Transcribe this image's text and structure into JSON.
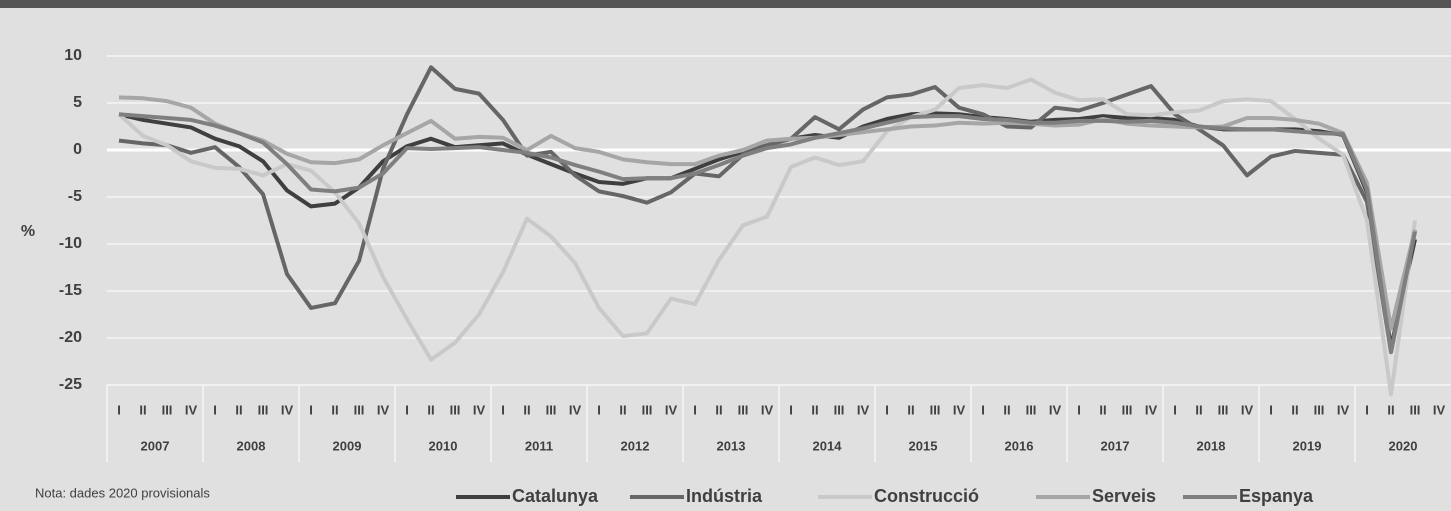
{
  "chart_data": {
    "type": "line",
    "y_label": "%",
    "note": "Nota: dades 2020 provisionals",
    "categories": [
      "I",
      "II",
      "III",
      "IV",
      "I",
      "II",
      "III",
      "IV",
      "I",
      "II",
      "III",
      "IV",
      "I",
      "II",
      "III",
      "IV",
      "I",
      "II",
      "III",
      "IV",
      "I",
      "II",
      "III",
      "IV",
      "I",
      "II",
      "III",
      "IV",
      "I",
      "II",
      "III",
      "IV",
      "I",
      "II",
      "III",
      "IV",
      "I",
      "II",
      "III",
      "IV",
      "I",
      "II",
      "III",
      "IV",
      "I",
      "II",
      "III",
      "IV",
      "I",
      "II",
      "III",
      "IV",
      "I",
      "II",
      "III",
      "IV"
    ],
    "years": [
      "2007",
      "2008",
      "2009",
      "2010",
      "2011",
      "2012",
      "2013",
      "2014",
      "2015",
      "2016",
      "2017",
      "2018",
      "2019",
      "2020"
    ],
    "ylim": [
      -25,
      10
    ],
    "yticks": [
      10,
      5,
      0,
      -5,
      -10,
      -15,
      -20,
      -25
    ],
    "grid": true,
    "series": [
      {
        "name": "Catalunya",
        "color": "#3f3f3f",
        "values": [
          3.8,
          3.2,
          2.8,
          2.4,
          1.2,
          0.4,
          -1.2,
          -4.3,
          -6.0,
          -5.7,
          -4.0,
          -1.2,
          0.4,
          1.2,
          0.3,
          0.5,
          0.7,
          -0.5,
          -1.5,
          -2.5,
          -3.4,
          -3.6,
          -3.0,
          -3.0,
          -2.0,
          -1.0,
          -0.2,
          0.5,
          1.2,
          1.6,
          1.3,
          2.5,
          3.3,
          3.8,
          3.9,
          3.8,
          3.5,
          3.3,
          3.0,
          3.2,
          3.3,
          3.6,
          3.4,
          3.4,
          3.2,
          2.5,
          2.2,
          2.2,
          2.2,
          2.2,
          2.0,
          1.6,
          -4.5,
          -21.0,
          -9.5,
          null
        ]
      },
      {
        "name": "Indústria",
        "color": "#666666",
        "values": [
          1.0,
          0.7,
          0.5,
          -0.3,
          0.3,
          -1.8,
          -4.7,
          -13.2,
          -16.8,
          -16.3,
          -11.8,
          -2.0,
          3.8,
          8.8,
          6.5,
          6.0,
          3.2,
          -0.6,
          -0.2,
          -2.7,
          -4.4,
          -4.9,
          -5.6,
          -4.5,
          -2.5,
          -2.8,
          -0.5,
          0.5,
          1.2,
          3.5,
          2.2,
          4.3,
          5.6,
          5.9,
          6.7,
          4.5,
          3.8,
          2.5,
          2.4,
          4.5,
          4.2,
          5.0,
          5.9,
          6.8,
          3.8,
          2.2,
          0.5,
          -2.7,
          -0.7,
          -0.1,
          -0.3,
          -0.5,
          -5.5,
          -21.5,
          -8.5,
          null
        ]
      },
      {
        "name": "Construcció",
        "color": "#c9c9c9",
        "values": [
          3.8,
          1.5,
          0.5,
          -1.2,
          -1.9,
          -2.0,
          -2.7,
          -1.5,
          -2.2,
          -4.5,
          -7.8,
          -13.5,
          -18.0,
          -22.3,
          -20.5,
          -17.5,
          -13.0,
          -7.3,
          -9.2,
          -12.0,
          -16.8,
          -19.8,
          -19.5,
          -15.8,
          -16.4,
          -11.7,
          -8.0,
          -7.1,
          -1.8,
          -0.8,
          -1.6,
          -1.2,
          2.0,
          3.5,
          4.3,
          6.6,
          6.9,
          6.6,
          7.5,
          6.1,
          5.3,
          5.4,
          3.8,
          3.7,
          4.0,
          4.2,
          5.2,
          5.4,
          5.2,
          3.3,
          1.2,
          -0.5,
          -7.5,
          -26.0,
          -7.5,
          null
        ]
      },
      {
        "name": "Serveis",
        "color": "#a6a6a6",
        "values": [
          5.6,
          5.5,
          5.2,
          4.5,
          2.8,
          1.8,
          1.0,
          -0.4,
          -1.3,
          -1.4,
          -1.0,
          0.5,
          1.8,
          3.1,
          1.2,
          1.4,
          1.3,
          0.0,
          1.5,
          0.2,
          -0.2,
          -1.0,
          -1.3,
          -1.5,
          -1.5,
          -0.6,
          0.0,
          1.0,
          1.2,
          1.3,
          1.6,
          1.9,
          2.2,
          2.5,
          2.6,
          2.9,
          2.8,
          2.9,
          2.8,
          2.6,
          2.7,
          3.3,
          2.8,
          2.6,
          2.5,
          2.4,
          2.5,
          3.4,
          3.4,
          3.2,
          2.8,
          1.8,
          -3.5,
          -19.0,
          -8.5,
          null
        ]
      },
      {
        "name": "Espanya",
        "color": "#7f7f7f",
        "values": [
          3.8,
          3.6,
          3.4,
          3.2,
          2.6,
          1.8,
          0.8,
          -1.5,
          -4.2,
          -4.4,
          -4.0,
          -2.5,
          0.2,
          0.1,
          0.2,
          0.3,
          0.0,
          -0.3,
          -0.8,
          -1.6,
          -2.3,
          -3.1,
          -3.0,
          -3.0,
          -2.5,
          -1.6,
          -0.6,
          0.2,
          0.6,
          1.3,
          1.8,
          2.3,
          2.9,
          3.5,
          3.6,
          3.6,
          3.3,
          3.2,
          2.9,
          2.9,
          3.1,
          3.1,
          3.0,
          3.1,
          2.9,
          2.5,
          2.3,
          2.2,
          2.2,
          2.0,
          1.8,
          1.7,
          -4.2,
          -21.5,
          -8.7,
          null
        ]
      }
    ]
  }
}
